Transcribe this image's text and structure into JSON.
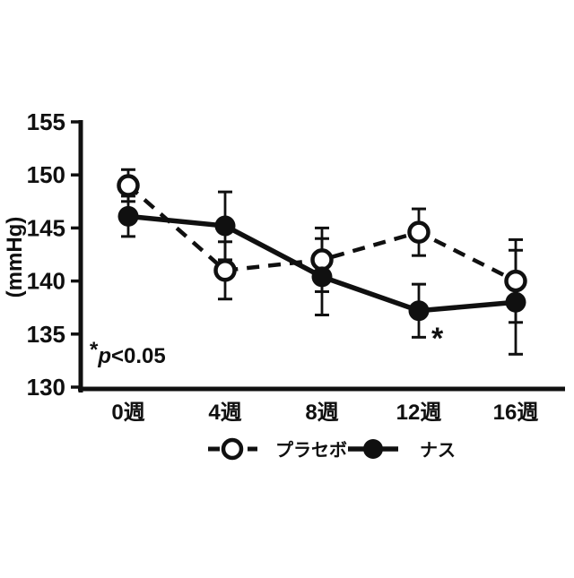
{
  "chart_data": {
    "type": "line",
    "title": "",
    "xlabel": "",
    "ylabel": "(mmHg)",
    "ylim": [
      130,
      155
    ],
    "y_ticks": [
      130,
      135,
      140,
      145,
      150,
      155
    ],
    "categories": [
      "0週",
      "4週",
      "8週",
      "12週",
      "16週"
    ],
    "grid": false,
    "legend_position": "bottom",
    "series": [
      {
        "name": "プラセボ",
        "marker": "open-circle",
        "line_style": "dashed",
        "values": [
          149.0,
          141.0,
          142.0,
          144.6,
          140.0
        ],
        "errors": [
          1.5,
          2.7,
          3.0,
          2.2,
          3.9
        ]
      },
      {
        "name": "ナス",
        "marker": "filled-circle",
        "line_style": "solid",
        "values": [
          146.1,
          145.2,
          140.4,
          137.2,
          138.0
        ],
        "errors": [
          1.9,
          3.2,
          3.6,
          2.5,
          4.9
        ]
      }
    ],
    "annotations": {
      "significance_note": {
        "star": "*",
        "p_var": "p",
        "comparison": "<0.05"
      },
      "point_star": {
        "symbol": "*",
        "series": "ナス",
        "category": "12週"
      }
    },
    "colors": {
      "foreground": "#101010",
      "background": "#ffffff"
    }
  }
}
